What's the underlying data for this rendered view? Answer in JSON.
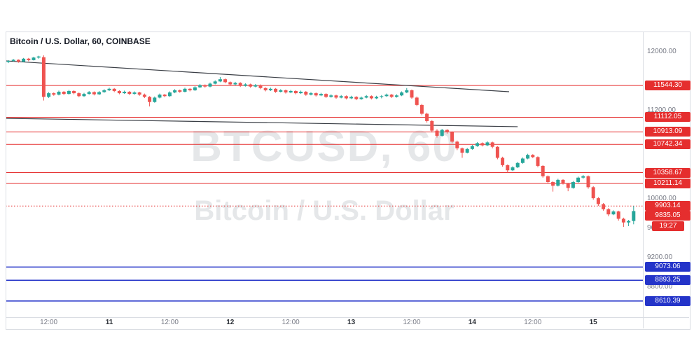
{
  "chart_data": {
    "type": "candlestick",
    "title": "Bitcoin / U.S. Dollar, 60, COINBASE",
    "symbol": "BTCUSD",
    "interval": "60",
    "exchange": "COINBASE",
    "watermark_symbol": "BTCUSD, 60",
    "watermark_name": "Bitcoin / U.S. Dollar",
    "price_axis": {
      "visible_max": 12280,
      "visible_min": 8390,
      "tick_labels": [
        12000,
        11200,
        10000,
        9600,
        9200,
        8800
      ]
    },
    "time_axis": {
      "ticks": [
        {
          "index": 8,
          "label": "12:00",
          "major": false
        },
        {
          "index": 20,
          "label": "11",
          "major": true
        },
        {
          "index": 32,
          "label": "12:00",
          "major": false
        },
        {
          "index": 44,
          "label": "12",
          "major": true
        },
        {
          "index": 56,
          "label": "12:00",
          "major": false
        },
        {
          "index": 68,
          "label": "13",
          "major": true
        },
        {
          "index": 80,
          "label": "12:00",
          "major": false
        },
        {
          "index": 92,
          "label": "14",
          "major": true
        },
        {
          "index": 104,
          "label": "12:00",
          "major": false
        },
        {
          "index": 116,
          "label": "15",
          "major": true
        }
      ]
    },
    "levels": {
      "resistance": [
        {
          "price": 11544.3,
          "label": "11544.30",
          "style": "solid"
        },
        {
          "price": 11112.05,
          "label": "11112.05",
          "style": "solid"
        },
        {
          "price": 10913.09,
          "label": "10913.09",
          "style": "solid"
        },
        {
          "price": 10742.34,
          "label": "10742.34",
          "style": "solid"
        },
        {
          "price": 10358.67,
          "label": "10358.67",
          "style": "solid"
        },
        {
          "price": 10211.14,
          "label": "10211.14",
          "style": "solid"
        },
        {
          "price": 9903.14,
          "label": "9903.14",
          "style": "dotted"
        }
      ],
      "support": [
        {
          "price": 9073.06,
          "label": "9073.06",
          "style": "solid"
        },
        {
          "price": 8893.25,
          "label": "8893.25",
          "style": "solid"
        },
        {
          "price": 8610.39,
          "label": "8610.39",
          "style": "solid"
        }
      ]
    },
    "trendlines": [
      {
        "from_index": -0.55,
        "from_price": 11880,
        "to_index": 99.3,
        "to_price": 11460
      },
      {
        "from_index": -0.55,
        "from_price": 11098,
        "to_index": 101,
        "to_price": 10984
      }
    ],
    "current_price": {
      "value": "9835.05",
      "countdown": "19:27",
      "direction": "down"
    },
    "colors": {
      "up": "#26a69a",
      "down": "#ef5350",
      "red": "#e52e2e",
      "blue": "#2434c9",
      "trendline": "#3a3e45",
      "axis_text": "#787b86",
      "frame": "#dadde3"
    },
    "candles": [
      [
        11865,
        11890,
        11850,
        11880
      ],
      [
        11880,
        11905,
        11870,
        11895
      ],
      [
        11895,
        11900,
        11855,
        11870
      ],
      [
        11870,
        11920,
        11865,
        11910
      ],
      [
        11910,
        11920,
        11875,
        11890
      ],
      [
        11890,
        11935,
        11885,
        11925
      ],
      [
        11925,
        11950,
        11910,
        11940
      ],
      [
        11930,
        11955,
        11340,
        11390
      ],
      [
        11390,
        11455,
        11375,
        11440
      ],
      [
        11440,
        11450,
        11405,
        11420
      ],
      [
        11420,
        11475,
        11410,
        11460
      ],
      [
        11460,
        11470,
        11415,
        11430
      ],
      [
        11430,
        11485,
        11420,
        11470
      ],
      [
        11470,
        11480,
        11425,
        11440
      ],
      [
        11440,
        11450,
        11385,
        11400
      ],
      [
        11400,
        11445,
        11390,
        11430
      ],
      [
        11430,
        11470,
        11420,
        11455
      ],
      [
        11455,
        11465,
        11410,
        11425
      ],
      [
        11425,
        11470,
        11415,
        11455
      ],
      [
        11455,
        11495,
        11445,
        11480
      ],
      [
        11480,
        11515,
        11470,
        11500
      ],
      [
        11500,
        11510,
        11455,
        11470
      ],
      [
        11470,
        11480,
        11425,
        11440
      ],
      [
        11440,
        11475,
        11430,
        11460
      ],
      [
        11460,
        11470,
        11415,
        11430
      ],
      [
        11430,
        11465,
        11420,
        11450
      ],
      [
        11450,
        11460,
        11405,
        11420
      ],
      [
        11420,
        11435,
        11375,
        11390
      ],
      [
        11390,
        11400,
        11260,
        11320
      ],
      [
        11320,
        11395,
        11310,
        11380
      ],
      [
        11380,
        11435,
        11370,
        11420
      ],
      [
        11420,
        11430,
        11385,
        11400
      ],
      [
        11400,
        11465,
        11390,
        11450
      ],
      [
        11450,
        11495,
        11440,
        11480
      ],
      [
        11480,
        11490,
        11445,
        11460
      ],
      [
        11460,
        11515,
        11450,
        11500
      ],
      [
        11500,
        11510,
        11465,
        11480
      ],
      [
        11480,
        11535,
        11470,
        11520
      ],
      [
        11520,
        11565,
        11510,
        11550
      ],
      [
        11550,
        11560,
        11515,
        11530
      ],
      [
        11530,
        11585,
        11520,
        11570
      ],
      [
        11570,
        11615,
        11560,
        11600
      ],
      [
        11600,
        11660,
        11590,
        11630
      ],
      [
        11630,
        11640,
        11575,
        11590
      ],
      [
        11590,
        11600,
        11545,
        11560
      ],
      [
        11560,
        11595,
        11550,
        11580
      ],
      [
        11580,
        11590,
        11525,
        11540
      ],
      [
        11540,
        11575,
        11530,
        11560
      ],
      [
        11560,
        11570,
        11515,
        11530
      ],
      [
        11530,
        11565,
        11520,
        11550
      ],
      [
        11550,
        11560,
        11495,
        11510
      ],
      [
        11510,
        11520,
        11465,
        11480
      ],
      [
        11480,
        11515,
        11470,
        11500
      ],
      [
        11500,
        11510,
        11445,
        11460
      ],
      [
        11460,
        11495,
        11450,
        11480
      ],
      [
        11480,
        11490,
        11435,
        11450
      ],
      [
        11450,
        11485,
        11440,
        11470
      ],
      [
        11470,
        11480,
        11425,
        11440
      ],
      [
        11440,
        11475,
        11430,
        11460
      ],
      [
        11460,
        11470,
        11405,
        11420
      ],
      [
        11420,
        11455,
        11410,
        11440
      ],
      [
        11440,
        11450,
        11395,
        11410
      ],
      [
        11410,
        11445,
        11400,
        11430
      ],
      [
        11430,
        11440,
        11375,
        11390
      ],
      [
        11390,
        11425,
        11380,
        11410
      ],
      [
        11410,
        11420,
        11365,
        11380
      ],
      [
        11380,
        11415,
        11370,
        11400
      ],
      [
        11400,
        11410,
        11355,
        11370
      ],
      [
        11370,
        11405,
        11360,
        11390
      ],
      [
        11390,
        11400,
        11345,
        11360
      ],
      [
        11360,
        11395,
        11350,
        11380
      ],
      [
        11380,
        11415,
        11370,
        11400
      ],
      [
        11400,
        11410,
        11355,
        11370
      ],
      [
        11370,
        11405,
        11360,
        11390
      ],
      [
        11390,
        11415,
        11370,
        11400
      ],
      [
        11400,
        11435,
        11390,
        11420
      ],
      [
        11420,
        11430,
        11375,
        11390
      ],
      [
        11390,
        11425,
        11380,
        11410
      ],
      [
        11410,
        11465,
        11400,
        11450
      ],
      [
        11450,
        11510,
        11440,
        11480
      ],
      [
        11480,
        11490,
        11365,
        11380
      ],
      [
        11380,
        11395,
        11265,
        11280
      ],
      [
        11280,
        11295,
        11140,
        11160
      ],
      [
        11160,
        11175,
        11040,
        11060
      ],
      [
        11060,
        11075,
        10905,
        10930
      ],
      [
        10930,
        10950,
        10835,
        10860
      ],
      [
        10860,
        10955,
        10850,
        10940
      ],
      [
        10940,
        10950,
        10890,
        10910
      ],
      [
        10910,
        10920,
        10760,
        10780
      ],
      [
        10780,
        10795,
        10665,
        10690
      ],
      [
        10690,
        10700,
        10560,
        10630
      ],
      [
        10630,
        10695,
        10620,
        10680
      ],
      [
        10680,
        10735,
        10670,
        10720
      ],
      [
        10720,
        10775,
        10710,
        10760
      ],
      [
        10760,
        10770,
        10715,
        10730
      ],
      [
        10730,
        10785,
        10720,
        10770
      ],
      [
        10770,
        10780,
        10690,
        10710
      ],
      [
        10710,
        10720,
        10540,
        10560
      ],
      [
        10560,
        10575,
        10440,
        10460
      ],
      [
        10460,
        10470,
        10355,
        10390
      ],
      [
        10390,
        10445,
        10380,
        10430
      ],
      [
        10430,
        10505,
        10420,
        10490
      ],
      [
        10490,
        10565,
        10480,
        10550
      ],
      [
        10550,
        10615,
        10540,
        10600
      ],
      [
        10600,
        10610,
        10555,
        10570
      ],
      [
        10570,
        10580,
        10430,
        10450
      ],
      [
        10450,
        10460,
        10290,
        10310
      ],
      [
        10310,
        10320,
        10205,
        10230
      ],
      [
        10230,
        10240,
        10100,
        10180
      ],
      [
        10180,
        10275,
        10170,
        10260
      ],
      [
        10260,
        10270,
        10195,
        10210
      ],
      [
        10210,
        10220,
        10105,
        10150
      ],
      [
        10150,
        10245,
        10140,
        10230
      ],
      [
        10230,
        10305,
        10220,
        10290
      ],
      [
        10290,
        10325,
        10275,
        10310
      ],
      [
        10310,
        10320,
        10140,
        10160
      ],
      [
        10160,
        10175,
        9990,
        10010
      ],
      [
        10010,
        10025,
        9905,
        9930
      ],
      [
        9930,
        9945,
        9840,
        9860
      ],
      [
        9860,
        9875,
        9765,
        9790
      ],
      [
        9790,
        9845,
        9780,
        9830
      ],
      [
        9830,
        9840,
        9705,
        9730
      ],
      [
        9730,
        9745,
        9620,
        9680
      ],
      [
        9680,
        9715,
        9630,
        9700
      ],
      [
        9700,
        9905,
        9655,
        9835
      ]
    ]
  }
}
